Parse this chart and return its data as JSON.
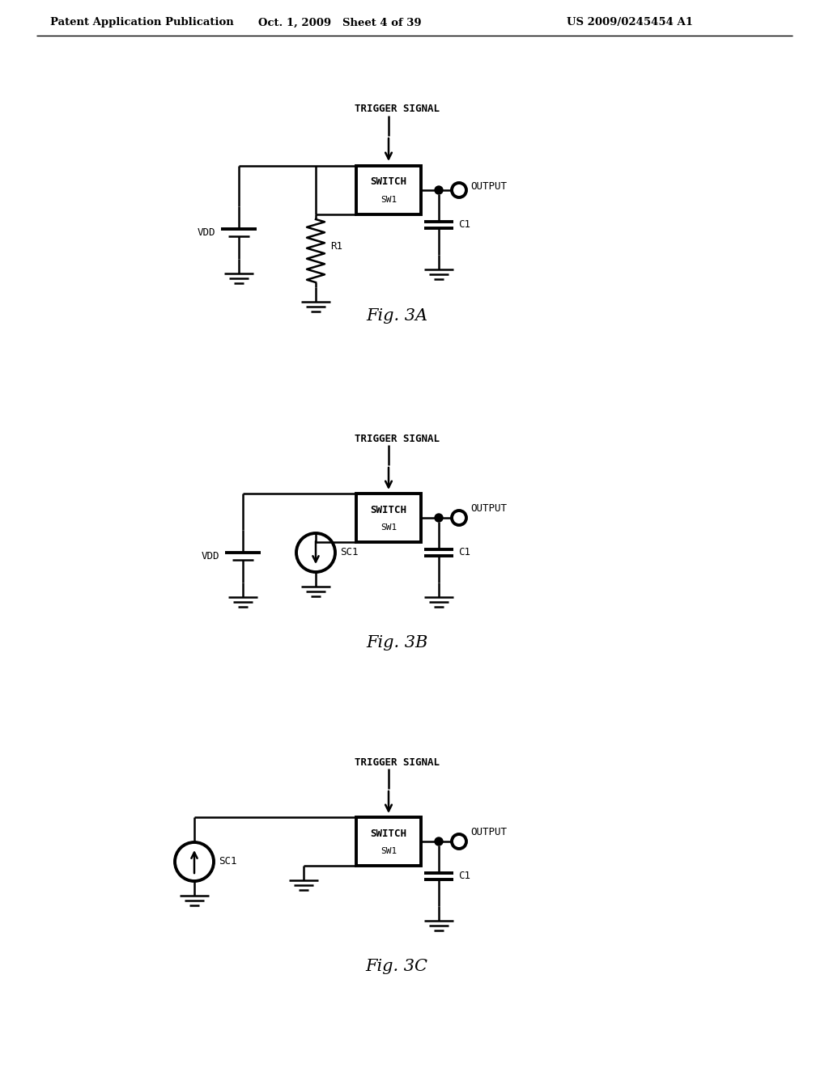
{
  "header_left": "Patent Application Publication",
  "header_mid": "Oct. 1, 2009   Sheet 4 of 39",
  "header_right": "US 2009/0245454 A1",
  "background": "#ffffff",
  "line_color": "#000000"
}
